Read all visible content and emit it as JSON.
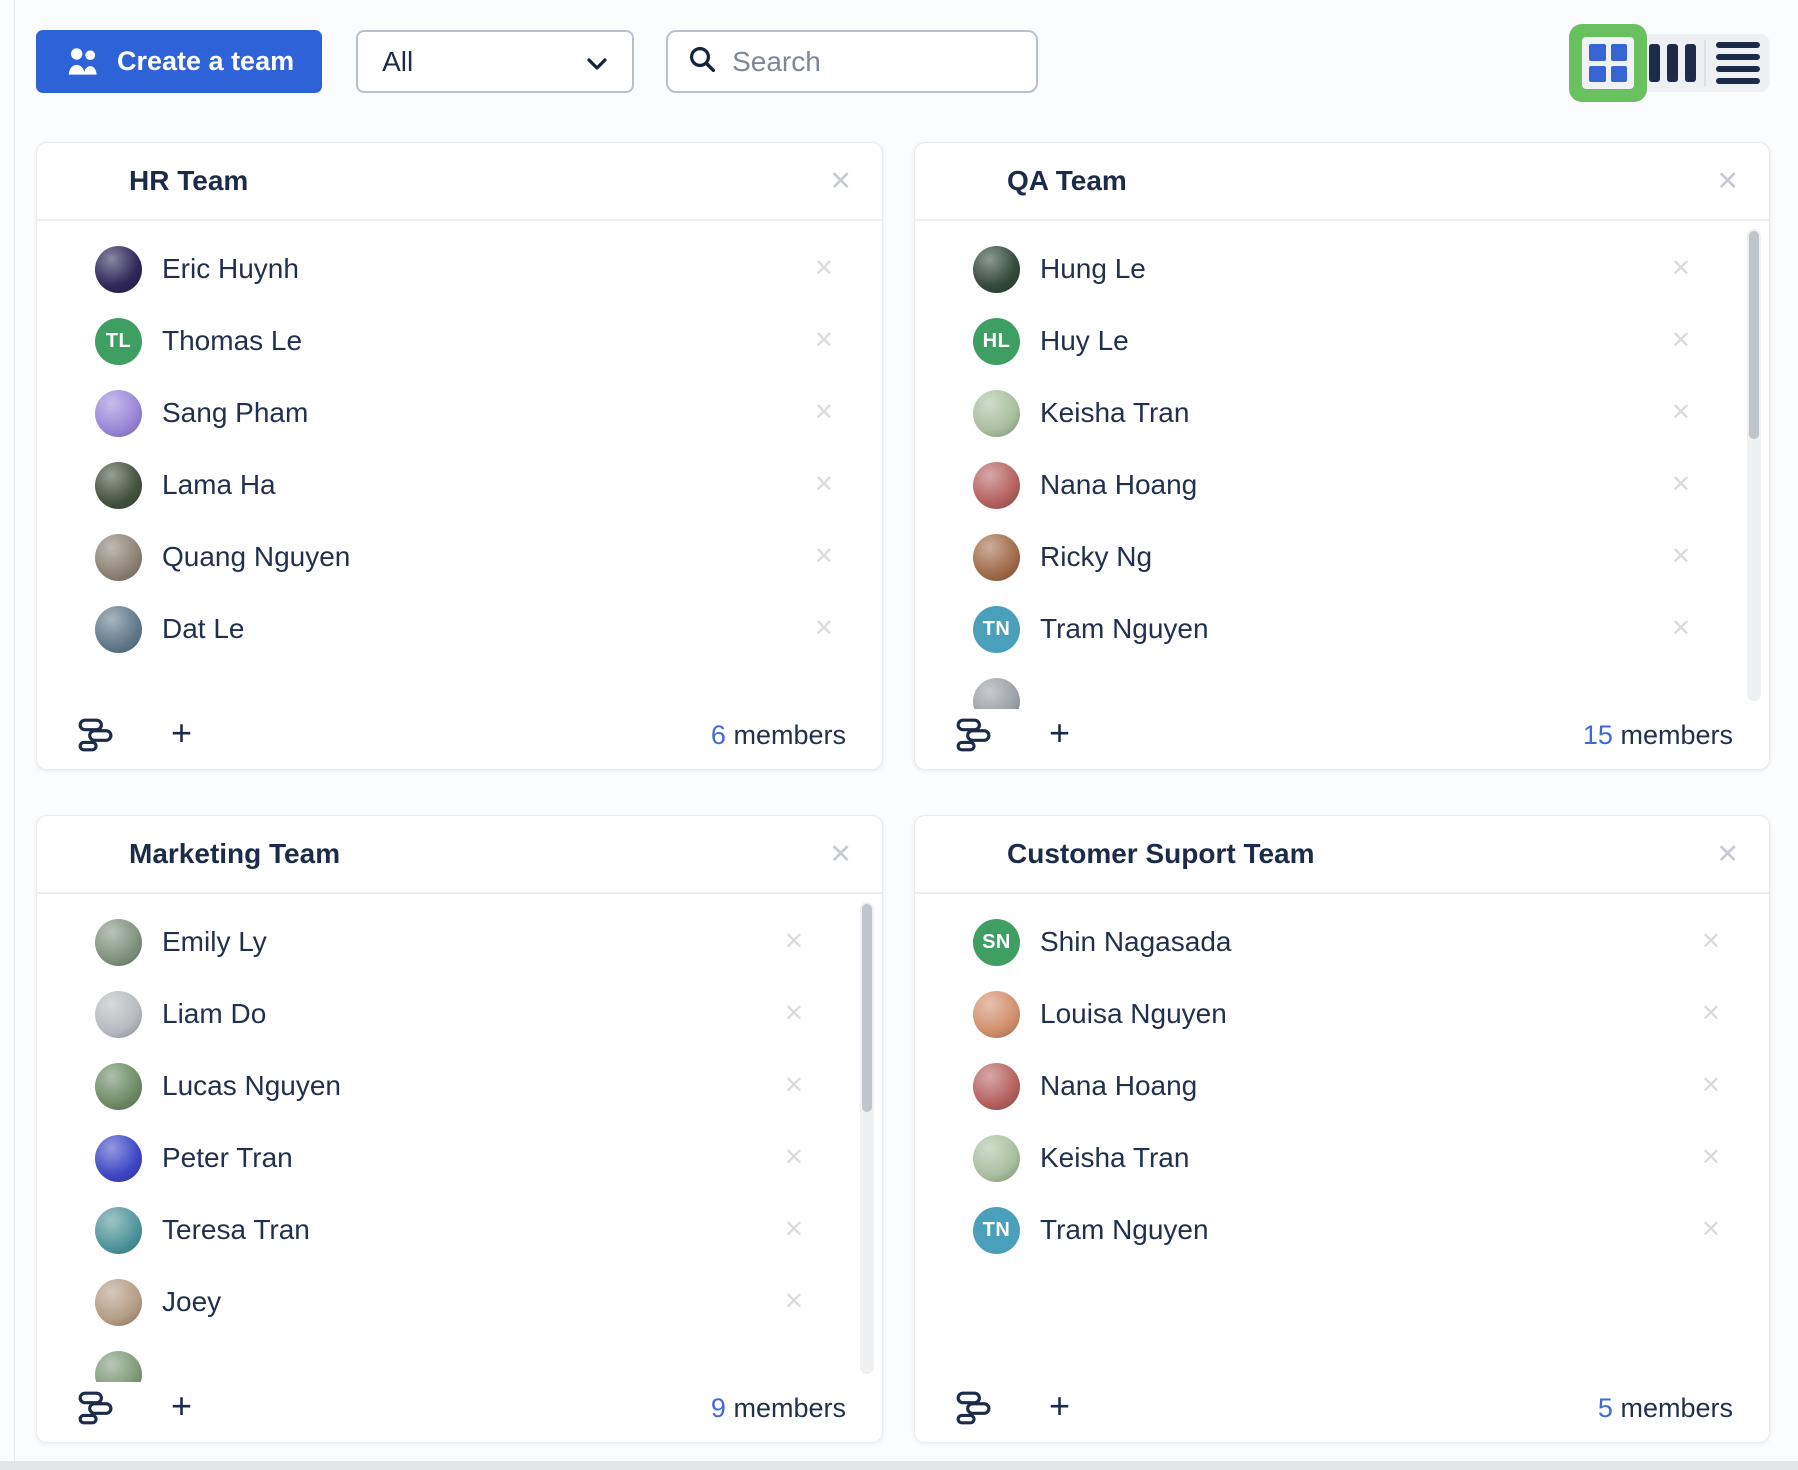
{
  "toolbar": {
    "create_team_label": "Create a team",
    "filter_value": "All",
    "search_placeholder": "Search",
    "active_view": "grid"
  },
  "colors": {
    "accent_blue": "#2e63d8",
    "count_blue": "#3f6ad8",
    "text_navy": "#1c2b4a",
    "active_view_green": "#68c15e",
    "avatar_green": "#3f9e62",
    "avatar_teal": "#4aa0ba"
  },
  "teams": [
    {
      "name": "HR Team",
      "member_count": "6",
      "member_count_label": "members",
      "has_scrollbar": false,
      "members": [
        {
          "name": "Eric Huynh",
          "avatar": {
            "type": "photo",
            "tone": "#2e2657"
          }
        },
        {
          "name": "Thomas Le",
          "avatar": {
            "type": "initials",
            "text": "TL",
            "color": "#3f9e62"
          }
        },
        {
          "name": "Sang Pham",
          "avatar": {
            "type": "photo",
            "tone": "#9a86d8"
          }
        },
        {
          "name": "Lama Ha",
          "avatar": {
            "type": "photo",
            "tone": "#45523f"
          }
        },
        {
          "name": "Quang Nguyen",
          "avatar": {
            "type": "photo",
            "tone": "#8b8274"
          }
        },
        {
          "name": "Dat Le",
          "avatar": {
            "type": "photo",
            "tone": "#62788a"
          }
        }
      ]
    },
    {
      "name": "QA Team",
      "member_count": "15",
      "member_count_label": "members",
      "has_scrollbar": true,
      "members": [
        {
          "name": "Hung Le",
          "avatar": {
            "type": "photo",
            "tone": "#33493b"
          }
        },
        {
          "name": "Huy Le",
          "avatar": {
            "type": "initials",
            "text": "HL",
            "color": "#3f9e62"
          }
        },
        {
          "name": "Keisha Tran",
          "avatar": {
            "type": "photo",
            "tone": "#a9bf9f"
          }
        },
        {
          "name": "Nana Hoang",
          "avatar": {
            "type": "photo",
            "tone": "#b5615f"
          }
        },
        {
          "name": "Ricky Ng",
          "avatar": {
            "type": "photo",
            "tone": "#a06b4a"
          }
        },
        {
          "name": "Tram Nguyen",
          "avatar": {
            "type": "initials",
            "text": "TN",
            "color": "#4aa0ba"
          }
        },
        {
          "name": "",
          "peek": true,
          "avatar": {
            "type": "photo",
            "tone": "#9aa0a6"
          }
        }
      ]
    },
    {
      "name": "Marketing Team",
      "member_count": "9",
      "member_count_label": "members",
      "has_scrollbar": true,
      "members": [
        {
          "name": "Emily Ly",
          "avatar": {
            "type": "photo",
            "tone": "#80927e"
          }
        },
        {
          "name": "Liam Do",
          "avatar": {
            "type": "photo",
            "tone": "#b7bac0"
          }
        },
        {
          "name": "Lucas Nguyen",
          "avatar": {
            "type": "photo",
            "tone": "#6e8c66"
          }
        },
        {
          "name": "Peter Tran",
          "avatar": {
            "type": "photo",
            "tone": "#3f45c4"
          }
        },
        {
          "name": "Teresa Tran",
          "avatar": {
            "type": "photo",
            "tone": "#4f949b"
          }
        },
        {
          "name": "Joey",
          "avatar": {
            "type": "photo",
            "tone": "#b59c85"
          }
        },
        {
          "name": "",
          "peek": true,
          "avatar": {
            "type": "photo",
            "tone": "#7e9a78"
          }
        }
      ]
    },
    {
      "name": "Customer Suport Team",
      "member_count": "5",
      "member_count_label": "members",
      "has_scrollbar": false,
      "members": [
        {
          "name": "Shin Nagasada",
          "avatar": {
            "type": "initials",
            "text": "SN",
            "color": "#3f9e62"
          }
        },
        {
          "name": "Louisa Nguyen",
          "avatar": {
            "type": "photo",
            "tone": "#d28f6d"
          }
        },
        {
          "name": "Nana Hoang",
          "avatar": {
            "type": "photo",
            "tone": "#b5615f"
          }
        },
        {
          "name": "Keisha Tran",
          "avatar": {
            "type": "photo",
            "tone": "#a9bf9f"
          }
        },
        {
          "name": "Tram Nguyen",
          "avatar": {
            "type": "initials",
            "text": "TN",
            "color": "#4aa0ba"
          }
        }
      ]
    }
  ]
}
